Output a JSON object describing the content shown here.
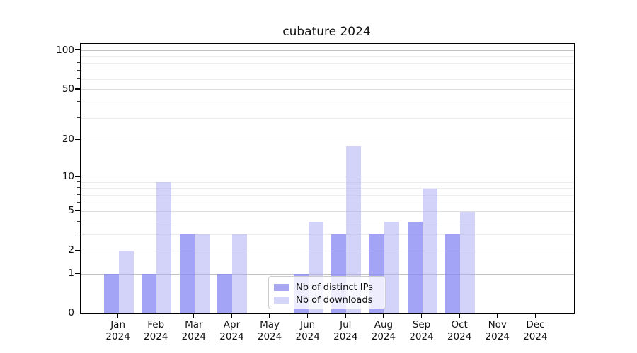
{
  "chart_data": {
    "type": "bar",
    "title": "cubature 2024",
    "categories": [
      "Jan 2024",
      "Feb 2024",
      "Mar 2024",
      "Apr 2024",
      "May 2024",
      "Jun 2024",
      "Jul 2024",
      "Aug 2024",
      "Sep 2024",
      "Oct 2024",
      "Nov 2024",
      "Dec 2024"
    ],
    "series": [
      {
        "name": "Nb of distinct IPs",
        "values": [
          1,
          1,
          3,
          1,
          0,
          1,
          3,
          3,
          4,
          3,
          0,
          0
        ],
        "bar_color": "rgba(138,138,244,0.78)",
        "legend_color": "#a8a8f2"
      },
      {
        "name": "Nb of downloads",
        "values": [
          2,
          9,
          3,
          3,
          0,
          4,
          18,
          4,
          8,
          5,
          0,
          0
        ],
        "bar_color": "rgba(168,168,246,0.5)",
        "legend_color": "#d6d6f8"
      }
    ],
    "y_axis": {
      "scale": "log10(value+1)",
      "tick_values": [
        0,
        1,
        2,
        5,
        10,
        20,
        50,
        100
      ],
      "minor_tick_values": [
        3,
        4,
        6,
        7,
        8,
        9,
        30,
        40,
        60,
        70,
        80,
        90
      ],
      "range": [
        0,
        113
      ]
    },
    "x_axis": {
      "tick_label_year": "2024"
    },
    "legend_position": "inside-lower-center",
    "grid": true
  },
  "colors": {
    "grid_decade": "#c3c3c3",
    "grid_major": "#dedede",
    "grid_minor": "#ededed",
    "axis": "#000000",
    "text": "#111111",
    "legend_bg": "rgba(255,255,255,0.8)",
    "legend_border": "#cccccc"
  }
}
